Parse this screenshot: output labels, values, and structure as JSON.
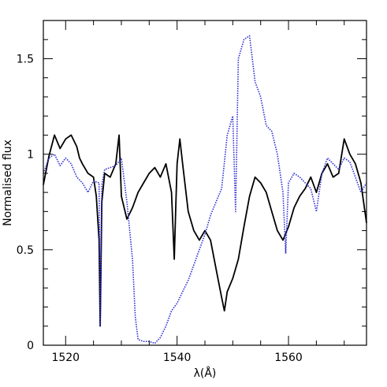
{
  "chart_data": {
    "type": "line",
    "title": "",
    "xlabel": "λ(Å)",
    "ylabel": "Normalised flux",
    "xlim": [
      1516,
      1574
    ],
    "ylim": [
      0,
      1.7
    ],
    "x_ticks": [
      {
        "value": 1520,
        "label": "1520"
      },
      {
        "value": 1540,
        "label": "1540"
      },
      {
        "value": 1560,
        "label": "1560"
      }
    ],
    "y_ticks": [
      {
        "value": 0,
        "label": "0"
      },
      {
        "value": 0.5,
        "label": "0.5"
      },
      {
        "value": 1,
        "label": "1"
      },
      {
        "value": 1.5,
        "label": "1.5"
      }
    ],
    "grid": false,
    "legend": "none",
    "series": [
      {
        "color": "#000000",
        "style": "solid",
        "points": [
          [
            1516,
            0.84
          ],
          [
            1517,
            0.99
          ],
          [
            1518,
            1.1
          ],
          [
            1519,
            1.03
          ],
          [
            1520,
            1.08
          ],
          [
            1521,
            1.1
          ],
          [
            1522,
            1.04
          ],
          [
            1522.5,
            0.98
          ],
          [
            1523,
            0.95
          ],
          [
            1524,
            0.9
          ],
          [
            1525,
            0.88
          ],
          [
            1525.5,
            0.78
          ],
          [
            1526,
            0.55
          ],
          [
            1526.2,
            0.1
          ],
          [
            1526.5,
            0.75
          ],
          [
            1527,
            0.9
          ],
          [
            1528,
            0.88
          ],
          [
            1529,
            0.95
          ],
          [
            1529.6,
            1.1
          ],
          [
            1530,
            0.78
          ],
          [
            1531,
            0.66
          ],
          [
            1532,
            0.72
          ],
          [
            1533,
            0.8
          ],
          [
            1534,
            0.85
          ],
          [
            1535,
            0.9
          ],
          [
            1536,
            0.93
          ],
          [
            1537,
            0.88
          ],
          [
            1538,
            0.95
          ],
          [
            1539,
            0.8
          ],
          [
            1539.5,
            0.45
          ],
          [
            1539.8,
            0.75
          ],
          [
            1540,
            0.95
          ],
          [
            1540.5,
            1.08
          ],
          [
            1541,
            0.95
          ],
          [
            1542,
            0.7
          ],
          [
            1543,
            0.6
          ],
          [
            1544,
            0.55
          ],
          [
            1545,
            0.6
          ],
          [
            1546,
            0.55
          ],
          [
            1547,
            0.4
          ],
          [
            1548,
            0.25
          ],
          [
            1548.5,
            0.18
          ],
          [
            1549,
            0.28
          ],
          [
            1550,
            0.35
          ],
          [
            1551,
            0.45
          ],
          [
            1552,
            0.62
          ],
          [
            1553,
            0.78
          ],
          [
            1554,
            0.88
          ],
          [
            1555,
            0.85
          ],
          [
            1556,
            0.8
          ],
          [
            1557,
            0.7
          ],
          [
            1558,
            0.6
          ],
          [
            1559,
            0.55
          ],
          [
            1560,
            0.62
          ],
          [
            1561,
            0.72
          ],
          [
            1562,
            0.78
          ],
          [
            1563,
            0.82
          ],
          [
            1564,
            0.88
          ],
          [
            1565,
            0.8
          ],
          [
            1566,
            0.9
          ],
          [
            1567,
            0.95
          ],
          [
            1568,
            0.88
          ],
          [
            1569,
            0.9
          ],
          [
            1570,
            1.08
          ],
          [
            1571,
            1.0
          ],
          [
            1572,
            0.95
          ],
          [
            1573,
            0.85
          ],
          [
            1574,
            0.64
          ]
        ]
      },
      {
        "color": "#2b2bd4",
        "style": "dotted",
        "points": [
          [
            1516,
            0.9
          ],
          [
            1517,
            0.98
          ],
          [
            1518,
            1.0
          ],
          [
            1519,
            0.94
          ],
          [
            1520,
            0.98
          ],
          [
            1521,
            0.95
          ],
          [
            1522,
            0.88
          ],
          [
            1523,
            0.85
          ],
          [
            1524,
            0.8
          ],
          [
            1525,
            0.86
          ],
          [
            1526,
            0.85
          ],
          [
            1526.2,
            0.1
          ],
          [
            1526.5,
            0.84
          ],
          [
            1527,
            0.92
          ],
          [
            1528,
            0.93
          ],
          [
            1529,
            0.94
          ],
          [
            1530,
            0.98
          ],
          [
            1531,
            0.75
          ],
          [
            1532,
            0.45
          ],
          [
            1532.5,
            0.15
          ],
          [
            1533,
            0.03
          ],
          [
            1534,
            0.02
          ],
          [
            1535,
            0.02
          ],
          [
            1536,
            0.01
          ],
          [
            1537,
            0.04
          ],
          [
            1538,
            0.1
          ],
          [
            1539,
            0.18
          ],
          [
            1540,
            0.22
          ],
          [
            1541,
            0.28
          ],
          [
            1542,
            0.34
          ],
          [
            1543,
            0.42
          ],
          [
            1544,
            0.5
          ],
          [
            1545,
            0.58
          ],
          [
            1546,
            0.68
          ],
          [
            1547,
            0.75
          ],
          [
            1548,
            0.82
          ],
          [
            1549,
            1.1
          ],
          [
            1550,
            1.2
          ],
          [
            1550.5,
            0.7
          ],
          [
            1551,
            1.5
          ],
          [
            1552,
            1.6
          ],
          [
            1553,
            1.62
          ],
          [
            1554,
            1.38
          ],
          [
            1555,
            1.3
          ],
          [
            1556,
            1.15
          ],
          [
            1557,
            1.12
          ],
          [
            1558,
            1.0
          ],
          [
            1559,
            0.8
          ],
          [
            1559.5,
            0.48
          ],
          [
            1560,
            0.85
          ],
          [
            1561,
            0.9
          ],
          [
            1562,
            0.88
          ],
          [
            1563,
            0.85
          ],
          [
            1564,
            0.82
          ],
          [
            1565,
            0.7
          ],
          [
            1566,
            0.9
          ],
          [
            1567,
            0.98
          ],
          [
            1568,
            0.95
          ],
          [
            1569,
            0.92
          ],
          [
            1570,
            0.98
          ],
          [
            1571,
            0.96
          ],
          [
            1572,
            0.88
          ],
          [
            1573,
            0.8
          ],
          [
            1574,
            0.85
          ]
        ]
      }
    ]
  }
}
